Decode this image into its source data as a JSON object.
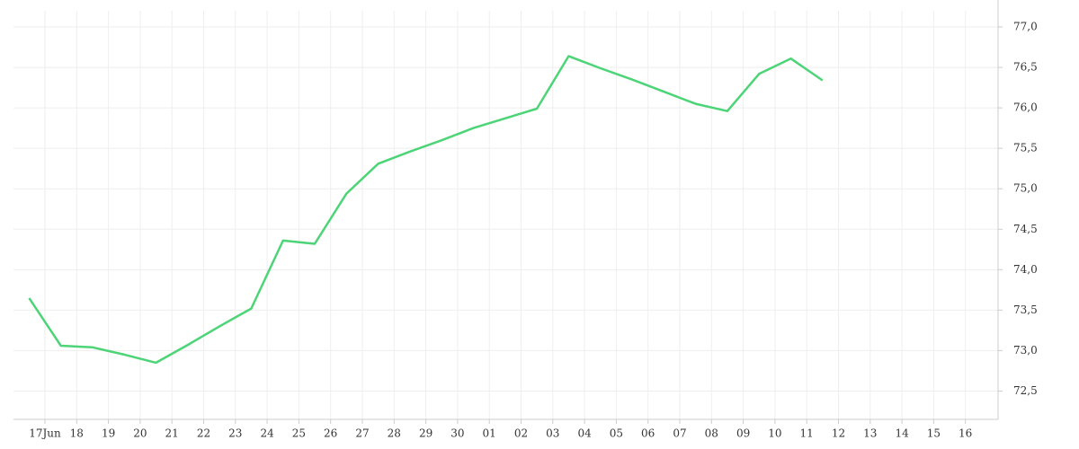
{
  "chart_data": {
    "type": "line",
    "categories": [
      "17Jun",
      "18",
      "19",
      "20",
      "21",
      "22",
      "23",
      "24",
      "25",
      "26",
      "27",
      "28",
      "29",
      "30",
      "01",
      "02",
      "03",
      "04",
      "05",
      "06",
      "07",
      "08",
      "09",
      "10",
      "11",
      "12",
      "13",
      "14",
      "15",
      "16"
    ],
    "series": [
      {
        "color": "#4cd477",
        "values": [
          73.65,
          73.06,
          73.04,
          72.95,
          72.85,
          73.07,
          73.3,
          73.52,
          74.36,
          74.32,
          74.94,
          75.31,
          75.46,
          75.6,
          75.75,
          75.87,
          75.99,
          76.64,
          76.49,
          76.35,
          76.2,
          76.05,
          75.96,
          76.42,
          76.61,
          76.34,
          null,
          null,
          null,
          null
        ]
      }
    ],
    "ylim": [
      72.15,
      77.2
    ],
    "yticks": [
      {
        "value": 72.5,
        "label": "72,5"
      },
      {
        "value": 73,
        "label": "73,0"
      },
      {
        "value": 73.5,
        "label": "73,5"
      },
      {
        "value": 74,
        "label": "74,0"
      },
      {
        "value": 74.5,
        "label": "74,5"
      },
      {
        "value": 75,
        "label": "75,0"
      },
      {
        "value": 75.5,
        "label": "75,5"
      },
      {
        "value": 76,
        "label": "76,0"
      },
      {
        "value": 76.5,
        "label": "76,5"
      },
      {
        "value": 77,
        "label": "77,0"
      }
    ],
    "grid": true
  }
}
